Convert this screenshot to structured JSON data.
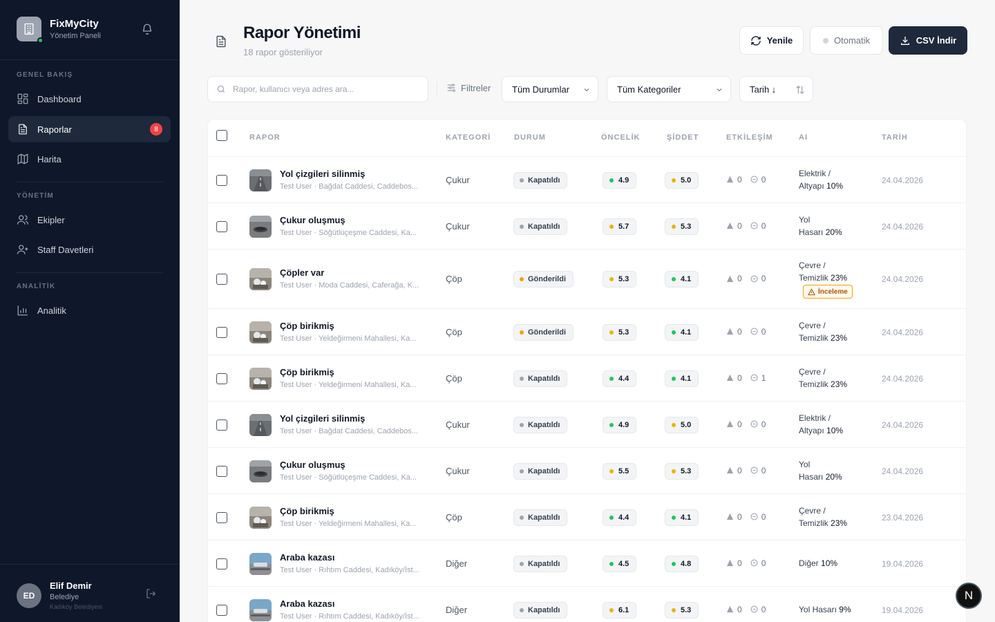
{
  "brand": {
    "title": "FixMyCity",
    "subtitle": "Yönetim Paneli"
  },
  "sidebar": {
    "sections": [
      {
        "label": "GENEL BAKIŞ"
      },
      {
        "label": "YÖNETİM"
      },
      {
        "label": "ANALİTİK"
      }
    ],
    "items": [
      {
        "label": "Dashboard",
        "icon": "grid-icon"
      },
      {
        "label": "Raporlar",
        "icon": "document-icon",
        "badge": "8",
        "active": true
      },
      {
        "label": "Harita",
        "icon": "map-icon"
      },
      {
        "label": "Ekipler",
        "icon": "users-icon"
      },
      {
        "label": "Staff Davetleri",
        "icon": "user-plus-icon"
      },
      {
        "label": "Analitik",
        "icon": "bar-chart-icon"
      }
    ],
    "user": {
      "initials": "ED",
      "name": "Elif Demir",
      "role": "Belediye",
      "org": "Kadıköy Belediyesi"
    }
  },
  "header": {
    "title": "Rapor Yönetimi",
    "subtitle": "18 rapor gösteriliyor",
    "refresh_label": "Yenile",
    "auto_label": "Otomatik",
    "csv_label": "CSV İndir"
  },
  "filters": {
    "search_placeholder": "Rapor, kullanıcı veya adres ara...",
    "filters_label": "Filtreler",
    "status_value": "Tüm Durumlar",
    "category_value": "Tüm Kategoriler",
    "date_value": "Tarih ↓"
  },
  "table": {
    "columns": [
      "RAPOR",
      "KATEGORİ",
      "DURUM",
      "ÖNCELİK",
      "ŞİDDET",
      "ETKİLEŞİM",
      "AI",
      "TARİH"
    ],
    "rows": [
      {
        "title": "Yol çizgileri silinmiş",
        "sub": "Test User · Bağdat Caddesi, Caddebos...",
        "category": "Çukur",
        "status": "Kapatıldı",
        "priority": "4.9",
        "pcolor": "#22c55e",
        "severity": "5.0",
        "scolor": "#eab308",
        "up": "0",
        "comments": "0",
        "ai1": "Elektrik /",
        "ai2": "Altyapı",
        "aipct": "10%",
        "date": "24.04.2026",
        "thumb": "road"
      },
      {
        "title": "Çukur oluşmuş",
        "sub": "Test User · Söğütlüçeşme Caddesi, Ka...",
        "category": "Çukur",
        "status": "Kapatıldı",
        "priority": "5.7",
        "pcolor": "#eab308",
        "severity": "5.3",
        "scolor": "#eab308",
        "up": "0",
        "comments": "0",
        "ai1": "Yol",
        "ai2": "Hasarı",
        "aipct": "20%",
        "date": "24.04.2026",
        "thumb": "pothole"
      },
      {
        "title": "Çöpler var",
        "sub": "Test User · Moda Caddesi, Caferağa, K...",
        "category": "Çöp",
        "status": "Gönderildi",
        "priority": "5.3",
        "pcolor": "#eab308",
        "severity": "4.1",
        "scolor": "#22c55e",
        "up": "0",
        "comments": "0",
        "ai1": "Çevre /",
        "ai2": "Temizlik",
        "aipct": "23%",
        "review": "İnceleme",
        "date": "24.04.2026",
        "thumb": "trash"
      },
      {
        "title": "Çöp birikmiş",
        "sub": "Test User · Yeldeğirmeni Mahallesi, Ka...",
        "category": "Çöp",
        "status": "Gönderildi",
        "priority": "5.3",
        "pcolor": "#eab308",
        "severity": "4.1",
        "scolor": "#22c55e",
        "up": "0",
        "comments": "0",
        "ai1": "Çevre /",
        "ai2": "Temizlik",
        "aipct": "23%",
        "date": "24.04.2026",
        "thumb": "trash"
      },
      {
        "title": "Çöp birikmiş",
        "sub": "Test User · Yeldeğirmeni Mahallesi, Ka...",
        "category": "Çöp",
        "status": "Kapatıldı",
        "priority": "4.4",
        "pcolor": "#22c55e",
        "severity": "4.1",
        "scolor": "#22c55e",
        "up": "0",
        "comments": "1",
        "ai1": "Çevre /",
        "ai2": "Temizlik",
        "aipct": "23%",
        "date": "24.04.2026",
        "thumb": "trash"
      },
      {
        "title": "Yol çizgileri silinmiş",
        "sub": "Test User · Bağdat Caddesi, Caddebos...",
        "category": "Çukur",
        "status": "Kapatıldı",
        "priority": "4.9",
        "pcolor": "#22c55e",
        "severity": "5.0",
        "scolor": "#eab308",
        "up": "0",
        "comments": "0",
        "ai1": "Elektrik /",
        "ai2": "Altyapı",
        "aipct": "10%",
        "date": "24.04.2026",
        "thumb": "road"
      },
      {
        "title": "Çukur oluşmuş",
        "sub": "Test User · Söğütlüçeşme Caddesi, Ka...",
        "category": "Çukur",
        "status": "Kapatıldı",
        "priority": "5.5",
        "pcolor": "#eab308",
        "severity": "5.3",
        "scolor": "#eab308",
        "up": "0",
        "comments": "0",
        "ai1": "Yol",
        "ai2": "Hasarı",
        "aipct": "20%",
        "date": "24.04.2026",
        "thumb": "pothole"
      },
      {
        "title": "Çöp birikmiş",
        "sub": "Test User · Yeldeğirmeni Mahallesi, Ka...",
        "category": "Çöp",
        "status": "Kapatıldı",
        "priority": "4.4",
        "pcolor": "#22c55e",
        "severity": "4.1",
        "scolor": "#22c55e",
        "up": "0",
        "comments": "0",
        "ai1": "Çevre /",
        "ai2": "Temizlik",
        "aipct": "23%",
        "date": "23.04.2026",
        "thumb": "trash"
      },
      {
        "title": "Araba kazası",
        "sub": "Test User · Rıhtım Caddesi, Kadıköy/İst...",
        "category": "Diğer",
        "status": "Kapatıldı",
        "priority": "4.5",
        "pcolor": "#22c55e",
        "severity": "4.8",
        "scolor": "#22c55e",
        "up": "0",
        "comments": "0",
        "ai1": "",
        "ai2": "Diğer",
        "aipct": "10%",
        "date": "19.04.2026",
        "thumb": "car"
      },
      {
        "title": "Araba kazası",
        "sub": "Test User · Rıhtım Caddesi, Kadıköy/İst...",
        "category": "Diğer",
        "status": "Kapatıldı",
        "priority": "6.1",
        "pcolor": "#eab308",
        "severity": "5.3",
        "scolor": "#eab308",
        "up": "0",
        "comments": "0",
        "ai1": "",
        "ai2": "Yol Hasarı",
        "aipct": "9%",
        "date": "19.04.2026",
        "thumb": "car"
      }
    ]
  },
  "fab_label": "N",
  "status_colors": {
    "Kapatıldı": "#9ca3af",
    "Gönderildi": "#f59e0b"
  }
}
